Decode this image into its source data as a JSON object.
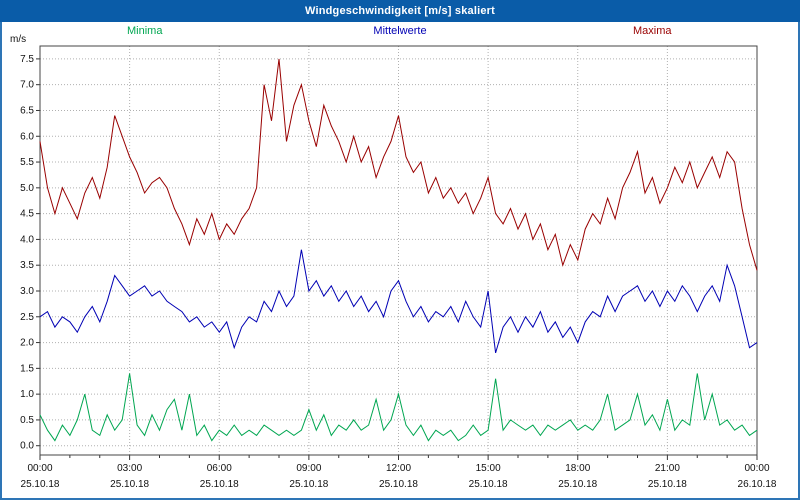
{
  "window": {
    "title": "Windgeschwindigkeit [m/s] skaliert"
  },
  "colors": {
    "titlebar": "#0a5ca8",
    "border": "#2e75b6",
    "minima": "#00a651",
    "mittelwerte": "#0000b4",
    "maxima": "#990000",
    "grid": "#b0b0b0"
  },
  "chart_data": {
    "type": "line",
    "title": "Windgeschwindigkeit [m/s] skaliert",
    "ylabel": "m/s",
    "ylim": [
      0.0,
      7.5
    ],
    "y_tick_step": 0.5,
    "y_tick_labels": [
      "0.0",
      "0.5",
      "1.0",
      "1.5",
      "2.0",
      "2.5",
      "3.0",
      "3.5",
      "4.0",
      "4.5",
      "5.0",
      "5.5",
      "6.0",
      "6.5",
      "7.0",
      "7.5"
    ],
    "grid": "dotted",
    "legend_position": "top",
    "x_interval_minutes": 15,
    "x_ticks": [
      {
        "time": "00:00",
        "date": "25.10.18"
      },
      {
        "time": "03:00",
        "date": "25.10.18"
      },
      {
        "time": "06:00",
        "date": "25.10.18"
      },
      {
        "time": "09:00",
        "date": "25.10.18"
      },
      {
        "time": "12:00",
        "date": "25.10.18"
      },
      {
        "time": "15:00",
        "date": "25.10.18"
      },
      {
        "time": "18:00",
        "date": "25.10.18"
      },
      {
        "time": "21:00",
        "date": "25.10.18"
      },
      {
        "time": "00:00",
        "date": "26.10.18"
      }
    ],
    "series": [
      {
        "name": "Minima",
        "color": "#00a651",
        "values": [
          0.6,
          0.3,
          0.1,
          0.4,
          0.2,
          0.5,
          1.0,
          0.3,
          0.2,
          0.6,
          0.3,
          0.5,
          1.4,
          0.4,
          0.2,
          0.6,
          0.3,
          0.7,
          0.9,
          0.3,
          1.0,
          0.2,
          0.4,
          0.1,
          0.3,
          0.2,
          0.4,
          0.2,
          0.3,
          0.2,
          0.4,
          0.3,
          0.2,
          0.3,
          0.2,
          0.3,
          0.7,
          0.3,
          0.6,
          0.2,
          0.4,
          0.3,
          0.5,
          0.3,
          0.4,
          0.9,
          0.3,
          0.5,
          1.0,
          0.4,
          0.2,
          0.4,
          0.1,
          0.3,
          0.2,
          0.3,
          0.1,
          0.2,
          0.4,
          0.2,
          0.3,
          1.3,
          0.3,
          0.5,
          0.4,
          0.3,
          0.4,
          0.2,
          0.4,
          0.3,
          0.4,
          0.5,
          0.3,
          0.4,
          0.3,
          0.5,
          1.0,
          0.3,
          0.4,
          0.5,
          1.0,
          0.4,
          0.6,
          0.3,
          0.9,
          0.3,
          0.5,
          0.4,
          1.4,
          0.5,
          1.0,
          0.4,
          0.5,
          0.3,
          0.4,
          0.2,
          0.3
        ]
      },
      {
        "name": "Mittelwerte",
        "color": "#0000b4",
        "values": [
          2.5,
          2.6,
          2.3,
          2.5,
          2.4,
          2.2,
          2.5,
          2.7,
          2.4,
          2.8,
          3.3,
          3.1,
          2.9,
          3.0,
          3.1,
          2.9,
          3.0,
          2.8,
          2.7,
          2.6,
          2.4,
          2.5,
          2.3,
          2.4,
          2.2,
          2.4,
          1.9,
          2.3,
          2.5,
          2.4,
          2.8,
          2.6,
          3.0,
          2.7,
          2.9,
          3.8,
          3.0,
          3.2,
          2.9,
          3.1,
          2.8,
          3.0,
          2.7,
          2.9,
          2.6,
          2.8,
          2.5,
          3.0,
          3.2,
          2.8,
          2.5,
          2.7,
          2.4,
          2.6,
          2.5,
          2.7,
          2.4,
          2.8,
          2.5,
          2.3,
          3.0,
          1.8,
          2.3,
          2.5,
          2.2,
          2.5,
          2.3,
          2.6,
          2.2,
          2.4,
          2.1,
          2.3,
          2.0,
          2.4,
          2.6,
          2.5,
          2.9,
          2.6,
          2.9,
          3.0,
          3.1,
          2.8,
          3.0,
          2.7,
          3.0,
          2.8,
          3.1,
          2.9,
          2.6,
          2.9,
          3.1,
          2.8,
          3.5,
          3.1,
          2.5,
          1.9,
          2.0
        ]
      },
      {
        "name": "Maxima",
        "color": "#990000",
        "values": [
          5.9,
          5.0,
          4.5,
          5.0,
          4.7,
          4.4,
          4.9,
          5.2,
          4.8,
          5.4,
          6.4,
          6.0,
          5.6,
          5.3,
          4.9,
          5.1,
          5.2,
          5.0,
          4.6,
          4.3,
          3.9,
          4.4,
          4.1,
          4.5,
          4.0,
          4.3,
          4.1,
          4.4,
          4.6,
          5.0,
          7.0,
          6.3,
          7.5,
          5.9,
          6.6,
          7.0,
          6.3,
          5.8,
          6.6,
          6.2,
          5.9,
          5.5,
          6.0,
          5.5,
          5.8,
          5.2,
          5.6,
          5.9,
          6.4,
          5.6,
          5.3,
          5.5,
          4.9,
          5.2,
          4.8,
          5.0,
          4.7,
          4.9,
          4.5,
          4.8,
          5.2,
          4.5,
          4.3,
          4.6,
          4.2,
          4.5,
          4.0,
          4.3,
          3.8,
          4.1,
          3.5,
          3.9,
          3.6,
          4.2,
          4.5,
          4.3,
          4.8,
          4.4,
          5.0,
          5.3,
          5.7,
          4.9,
          5.2,
          4.7,
          5.0,
          5.4,
          5.1,
          5.5,
          5.0,
          5.3,
          5.6,
          5.2,
          5.7,
          5.5,
          4.6,
          3.9,
          3.4
        ]
      }
    ]
  }
}
